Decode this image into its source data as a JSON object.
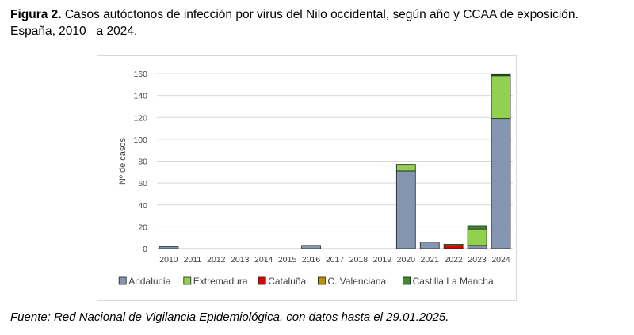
{
  "caption": {
    "label": "Figura 2.",
    "text": " Casos autóctonos de infección por virus del Nilo occidental, según año y CCAA de exposición.",
    "line2": "España, 2010   a 2024."
  },
  "source": "Fuente: Red Nacional de Vigilancia Epidemiológica, con datos hasta el 29.01.2025.",
  "chart_data": {
    "type": "bar",
    "stacked": true,
    "categories": [
      "2010",
      "2011",
      "2012",
      "2013",
      "2014",
      "2015",
      "2016",
      "2017",
      "2018",
      "2019",
      "2020",
      "2021",
      "2022",
      "2023",
      "2024"
    ],
    "ylabel": "Nº de casos",
    "ylim": [
      0,
      160
    ],
    "yticks": [
      0,
      20,
      40,
      60,
      80,
      100,
      120,
      140,
      160
    ],
    "grid": true,
    "legend_position": "bottom",
    "series": [
      {
        "name": "Andalucía",
        "color": "#8497B0",
        "values": [
          2,
          0,
          0,
          0,
          0,
          0,
          3,
          0,
          0,
          0,
          71,
          6,
          0,
          3,
          119
        ]
      },
      {
        "name": "Extremadura",
        "color": "#92D050",
        "values": [
          0,
          0,
          0,
          0,
          0,
          0,
          0,
          0,
          0,
          0,
          6,
          0,
          0,
          15,
          39
        ]
      },
      {
        "name": "Cataluña",
        "color": "#E00000",
        "values": [
          0,
          0,
          0,
          0,
          0,
          0,
          0,
          0,
          0,
          0,
          0,
          0,
          3,
          0,
          0
        ]
      },
      {
        "name": "C. Valenciana",
        "color": "#BF8F00",
        "values": [
          0,
          0,
          0,
          0,
          0,
          0,
          0,
          0,
          0,
          0,
          0,
          0,
          1,
          0,
          0
        ]
      },
      {
        "name": "Castilla La Mancha",
        "color": "#3E8E2F",
        "values": [
          0,
          0,
          0,
          0,
          0,
          0,
          0,
          0,
          0,
          0,
          0,
          0,
          0,
          3,
          1
        ]
      }
    ]
  }
}
